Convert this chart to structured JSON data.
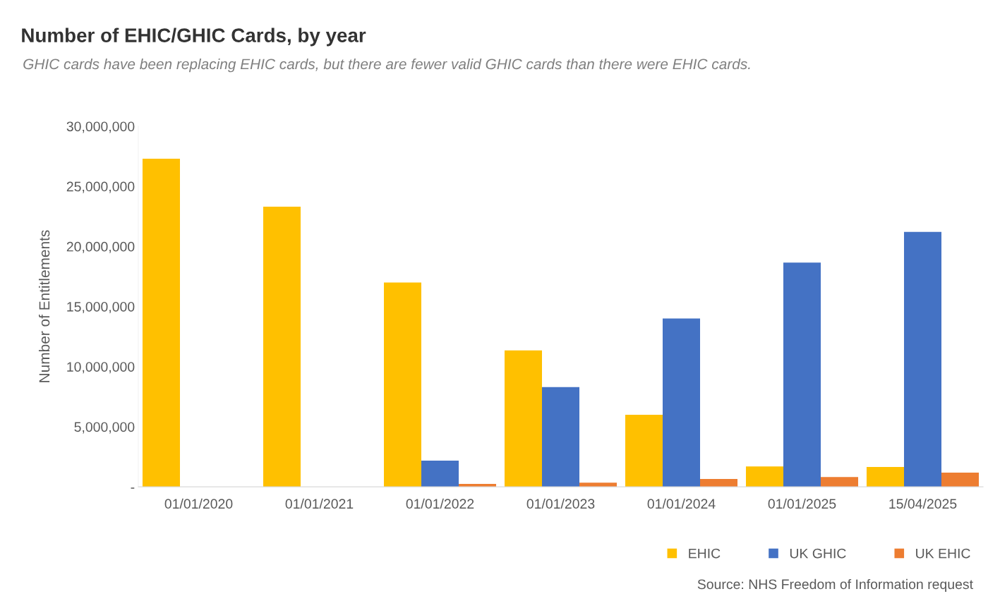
{
  "chart_data": {
    "type": "bar",
    "title": "Number of EHIC/GHIC Cards, by year",
    "subtitle": "GHIC cards have been replacing EHIC cards, but there are fewer valid GHIC cards than there were EHIC cards.",
    "ylabel": "Number of Entitlements",
    "categories": [
      "01/01/2020",
      "01/01/2021",
      "01/01/2022",
      "01/01/2023",
      "01/01/2024",
      "01/01/2025",
      "15/04/2025"
    ],
    "series": [
      {
        "name": "EHIC",
        "color": "#ffc000",
        "values": [
          27300000,
          23300000,
          17000000,
          11350000,
          6000000,
          1700000,
          1650000
        ]
      },
      {
        "name": "UK GHIC",
        "color": "#4472c4",
        "values": [
          null,
          null,
          2180000,
          8300000,
          14000000,
          18650000,
          21200000
        ]
      },
      {
        "name": "UK EHIC",
        "color": "#ed7d31",
        "values": [
          null,
          null,
          240000,
          350000,
          650000,
          820000,
          1180000
        ]
      }
    ],
    "ylim": [
      0,
      30000000
    ],
    "yticks": [
      {
        "value": 0,
        "label": "-"
      },
      {
        "value": 5000000,
        "label": "5,000,000"
      },
      {
        "value": 10000000,
        "label": "10,000,000"
      },
      {
        "value": 15000000,
        "label": "15,000,000"
      },
      {
        "value": 20000000,
        "label": "20,000,000"
      },
      {
        "value": 25000000,
        "label": "25,000,000"
      },
      {
        "value": 30000000,
        "label": "30,000,000"
      }
    ],
    "grid": false,
    "legend": "bottom right",
    "annotations": [
      "Source: NHS Freedom of Information request"
    ]
  }
}
